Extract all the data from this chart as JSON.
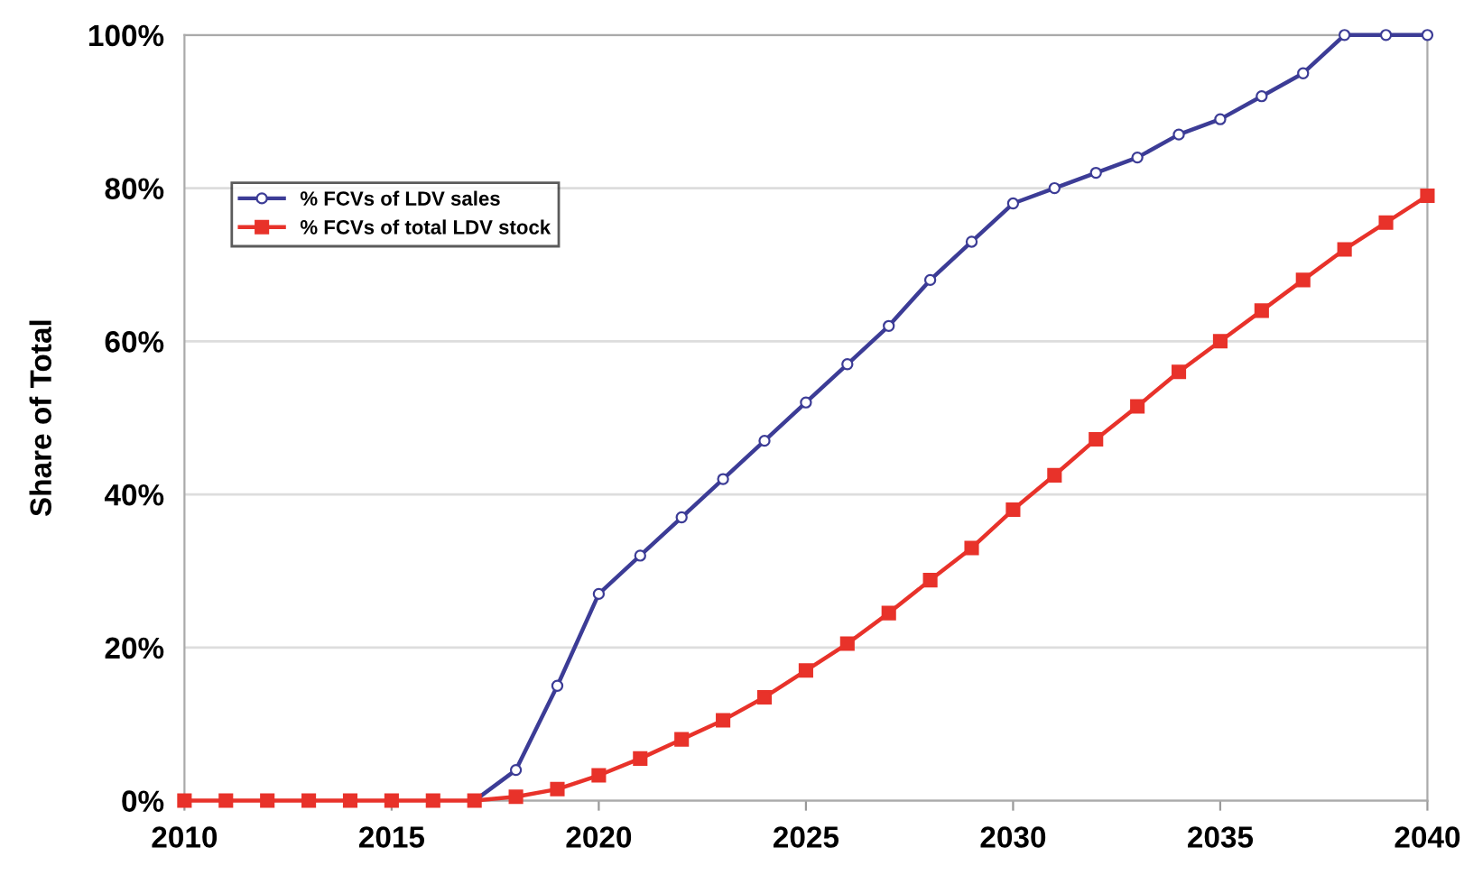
{
  "chart_data": {
    "type": "line",
    "ylabel": "Share of Total",
    "x": [
      2010,
      2011,
      2012,
      2013,
      2014,
      2015,
      2016,
      2017,
      2018,
      2019,
      2020,
      2021,
      2022,
      2023,
      2024,
      2025,
      2026,
      2027,
      2028,
      2029,
      2030,
      2031,
      2032,
      2033,
      2034,
      2035,
      2036,
      2037,
      2038,
      2039,
      2040
    ],
    "series": [
      {
        "name": "% FCVs of LDV sales",
        "color": "#3c3c96",
        "marker": "circle",
        "values": [
          null,
          null,
          null,
          null,
          null,
          null,
          null,
          0,
          4,
          15,
          27,
          32,
          37,
          42,
          47,
          52,
          57,
          62,
          68,
          73,
          78,
          80,
          82,
          84,
          87,
          89,
          92,
          95,
          100,
          100,
          100
        ]
      },
      {
        "name": "% FCVs of total LDV stock",
        "color": "#e8322a",
        "marker": "square",
        "values": [
          0,
          0,
          0,
          0,
          0,
          0,
          0,
          0,
          0.5,
          1.5,
          3.3,
          5.5,
          8,
          10.5,
          13.5,
          17,
          20.5,
          24.5,
          28.8,
          33,
          38,
          42.5,
          47.2,
          51.5,
          56,
          60,
          64,
          68,
          72,
          75.5,
          79
        ]
      }
    ],
    "xlim": [
      2010,
      2040
    ],
    "xticks": [
      2010,
      2015,
      2020,
      2025,
      2030,
      2035,
      2040
    ],
    "ylim": [
      0,
      100
    ],
    "yticks": [
      {
        "value": 0,
        "label": "0%"
      },
      {
        "value": 20,
        "label": "20%"
      },
      {
        "value": 40,
        "label": "40%"
      },
      {
        "value": 60,
        "label": "60%"
      },
      {
        "value": 80,
        "label": "80%"
      },
      {
        "value": 100,
        "label": "100%"
      }
    ],
    "grid": "y",
    "legend": "top left",
    "line_style": "solid"
  }
}
